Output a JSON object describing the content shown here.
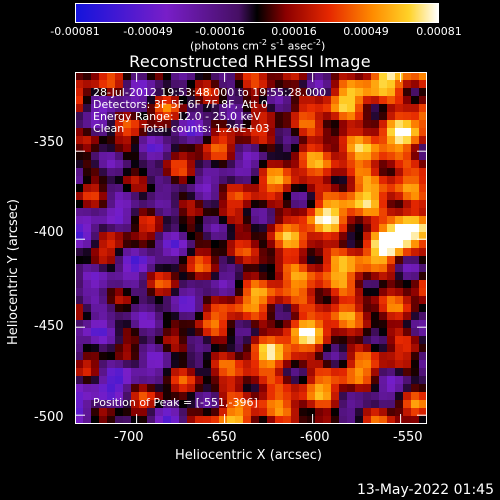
{
  "colorbar": {
    "tick_labels": [
      "-0.00081",
      "-0.00049",
      "-0.00016",
      "0.00016",
      "0.00049",
      "0.00081"
    ],
    "units": [
      "(photons cm",
      "-2",
      " s",
      "-1",
      " asec",
      "-2",
      ")"
    ]
  },
  "title": "Reconstructed RHESSI Image",
  "annotations": {
    "time_range": "28-Jul-2012 19:53:48.000 to 19:55:28.000",
    "detectors": "Detectors: 3F 5F 6F 7F 8F, Att 0",
    "energy_range": "Energy Range: 12.0 - 25.0 keV",
    "method_counts": "Clean     Total counts: 1.26E+03",
    "peak": "Position of Peak = [-551,-396]"
  },
  "axes": {
    "y_title": "Heliocentric  Y  (arcsec)",
    "x_title": "Heliocentric X (arcsec)",
    "y_ticks": [
      "-350",
      "-400",
      "-450",
      "-500"
    ],
    "x_ticks": [
      "-700",
      "-650",
      "-600",
      "-550"
    ]
  },
  "timestamp": "13-May-2022 01:45",
  "chart_data": {
    "type": "heatmap",
    "title": "Reconstructed RHESSI Image",
    "xlabel": "Heliocentric X (arcsec)",
    "ylabel": "Heliocentric  Y  (arcsec)",
    "xlim": [
      -735,
      -535
    ],
    "ylim": [
      -505,
      -305
    ],
    "x_ticks": [
      -700,
      -650,
      -600,
      -550
    ],
    "y_ticks": [
      -350,
      -400,
      -450,
      -500
    ],
    "colorbar_range": [
      -0.00081,
      0.00081
    ],
    "peak_position": [
      -551,
      -396
    ]
  }
}
